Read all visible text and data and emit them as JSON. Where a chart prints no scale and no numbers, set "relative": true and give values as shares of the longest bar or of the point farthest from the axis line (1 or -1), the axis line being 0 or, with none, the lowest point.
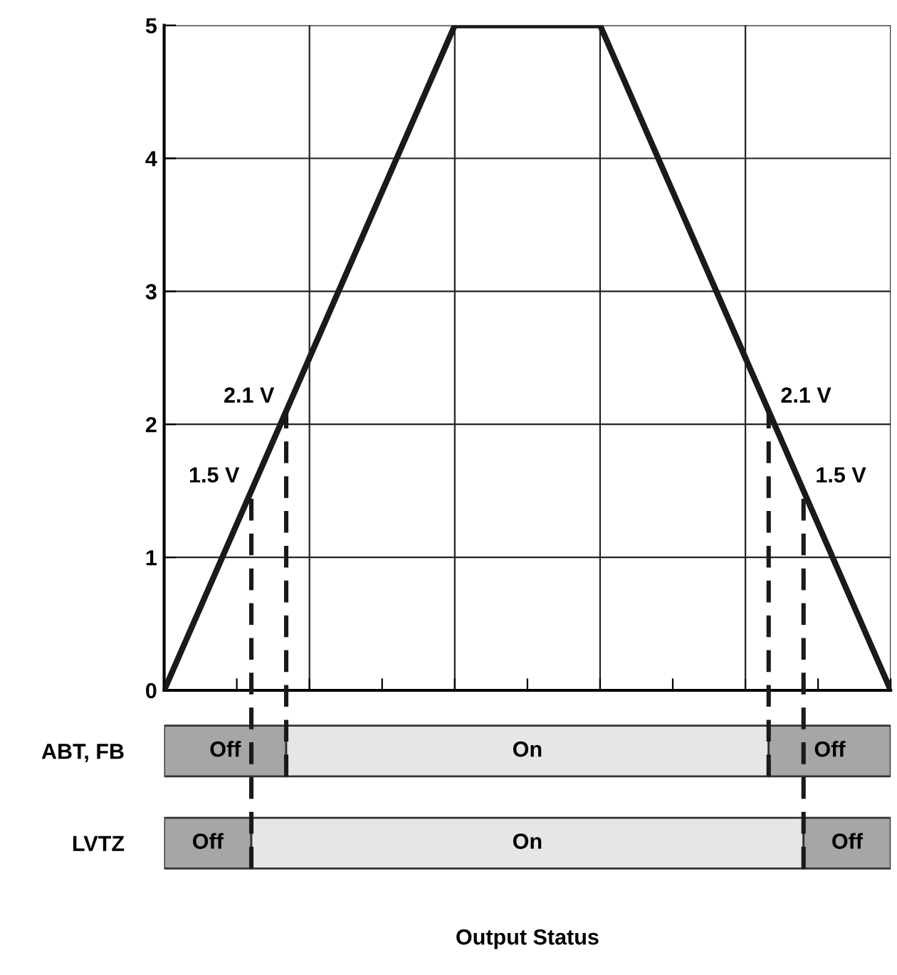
{
  "chart_data": [
    {
      "type": "line",
      "categories": [
        null,
        null,
        null,
        null,
        null,
        null,
        null,
        null,
        null,
        null,
        null
      ],
      "series": [
        {
          "color": "#1a1a1a",
          "values": [
            0,
            1.25,
            2.5,
            3.75,
            5,
            5,
            5,
            3.75,
            2.5,
            1.25,
            0
          ]
        }
      ],
      "ylim": [
        0,
        5
      ],
      "yticks": [
        0,
        1,
        2,
        3,
        4,
        5
      ],
      "grid": true,
      "line_style": "solid",
      "marker": "none",
      "annotations": [
        "1.5 V",
        "2.1 V",
        "2.1 V",
        "1.5 V"
      ]
    },
    {
      "type": "bar",
      "orientation": "horizontal",
      "stacked": true,
      "relative": true,
      "categories": [
        "ABT, FB",
        "LVTZ"
      ],
      "series": [
        {
          "name": "Off",
          "color": "#a6a6a6",
          "values": [
            0.168,
            0.12
          ]
        },
        {
          "name": "On",
          "color": "#e6e6e6",
          "values": [
            0.664,
            0.76
          ]
        },
        {
          "name": "Off",
          "color": "#a6a6a6",
          "values": [
            0.168,
            0.12
          ]
        }
      ],
      "tick_labels": "y",
      "xlabel": "Output Status"
    }
  ]
}
